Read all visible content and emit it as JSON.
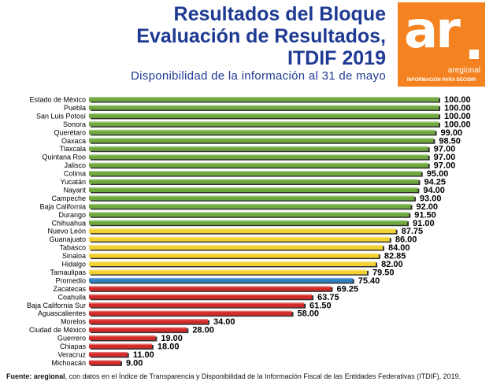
{
  "header": {
    "title_lines": [
      "Resultados del Bloque",
      "Evaluación de Resultados,",
      "ITDIF 2019"
    ],
    "subtitle": "Disponibilidad de la información al 31 de mayo"
  },
  "logo": {
    "mark": "ar",
    "name": "aregional",
    "tagline": "INFORMACIÓN PARA DECIDIR"
  },
  "footer": {
    "prefix": "Fuente:",
    "source": "aregional",
    "text": ", con datos en el Índice de Transparencia y Disponibilidad de la Información Fiscal de las Entidades Federativas (ITDIF), 2019."
  },
  "colors": {
    "green": "#6fa83d",
    "yellow": "#f2d22e",
    "blue": "#2d7fc1",
    "red": "#d42a2a",
    "title": "#1f3a93",
    "logo": "#f58220"
  },
  "chart_data": {
    "type": "bar",
    "orientation": "horizontal",
    "xlim": [
      0,
      100
    ],
    "grid": false,
    "legend": "none",
    "categories": [
      "Estado de México",
      "Puebla",
      "San Luis Potosí",
      "Sonora",
      "Querétaro",
      "Oaxaca",
      "Tlaxcala",
      "Quintana Roo",
      "Jalisco",
      "Colima",
      "Yucatán",
      "Nayarit",
      "Campeche",
      "Baja California",
      "Durango",
      "Chihuahua",
      "Nuevo León",
      "Guanajuato",
      "Tabasco",
      "Sinaloa",
      "Hidalgo",
      "Tamaulipas",
      "Promedio",
      "Zacatecas",
      "Coahuila",
      "Baja California Sur",
      "Aguascalientes",
      "Morelos",
      "Ciudad de México",
      "Guerrero",
      "Chiapas",
      "Veracruz",
      "Michoacán"
    ],
    "values": [
      100,
      100,
      100,
      100,
      99,
      98.5,
      97,
      97,
      97,
      95,
      94.25,
      94,
      93,
      92,
      91.5,
      91,
      87.75,
      86,
      84,
      82.85,
      82,
      79.5,
      75.4,
      69.25,
      63.75,
      61.5,
      58,
      34,
      28,
      19,
      18,
      11,
      9
    ],
    "value_labels": [
      "100.00",
      "100.00",
      "100.00",
      "100.00",
      "99.00",
      "98.50",
      "97.00",
      "97.00",
      "97.00",
      "95.00",
      "94.25",
      "94.00",
      "93.00",
      "92.00",
      "91.50",
      "91.00",
      "87.75",
      "86.00",
      "84.00",
      "82.85",
      "82.00",
      "79.50",
      "75.40",
      "69.25",
      "63.75",
      "61.50",
      "58.00",
      "34.00",
      "28.00",
      "19.00",
      "18.00",
      "11.00",
      "9.00"
    ],
    "bar_colors": [
      "green",
      "green",
      "green",
      "green",
      "green",
      "green",
      "green",
      "green",
      "green",
      "green",
      "green",
      "green",
      "green",
      "green",
      "green",
      "green",
      "yellow",
      "yellow",
      "yellow",
      "yellow",
      "yellow",
      "yellow",
      "blue",
      "red",
      "red",
      "red",
      "red",
      "red",
      "red",
      "red",
      "red",
      "red",
      "red"
    ]
  }
}
